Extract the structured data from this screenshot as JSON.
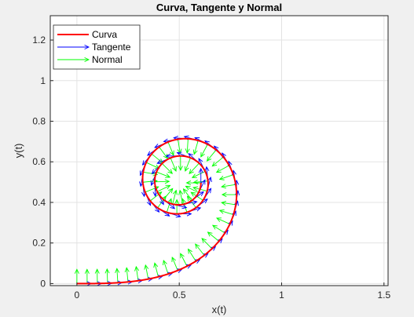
{
  "chart_data": {
    "type": "line",
    "title": "Curva, Tangente y Normal",
    "xlabel": "x(t)",
    "ylabel": "y(t)",
    "xlim": [
      -0.13,
      1.52
    ],
    "ylim": [
      -0.01,
      1.32
    ],
    "xticks": [
      0,
      0.5,
      1,
      1.5
    ],
    "xtick_labels": [
      "0",
      "0.5",
      "1",
      "1.5"
    ],
    "yticks": [
      0,
      0.2,
      0.4,
      0.6,
      0.8,
      1,
      1.2
    ],
    "ytick_labels": [
      "0",
      "0.2",
      "0.4",
      "0.6",
      "0.8",
      "1",
      "1.2"
    ],
    "grid": true,
    "legend_position": "top-left",
    "curve_description": "Euler spiral (clothoid) x=∫cos(πs²/2)ds, y=∫sin(πs²/2)ds for t in [0, 3]",
    "t_range": [
      0,
      3
    ],
    "arrow_scale": 0.07,
    "arrow_step": 0.05,
    "series": [
      {
        "name": "Curva",
        "color": "#ff0000",
        "style": "line"
      },
      {
        "name": "Tangente",
        "color": "#0000ff",
        "style": "arrow"
      },
      {
        "name": "Normal",
        "color": "#00ff00",
        "style": "arrow"
      }
    ]
  }
}
